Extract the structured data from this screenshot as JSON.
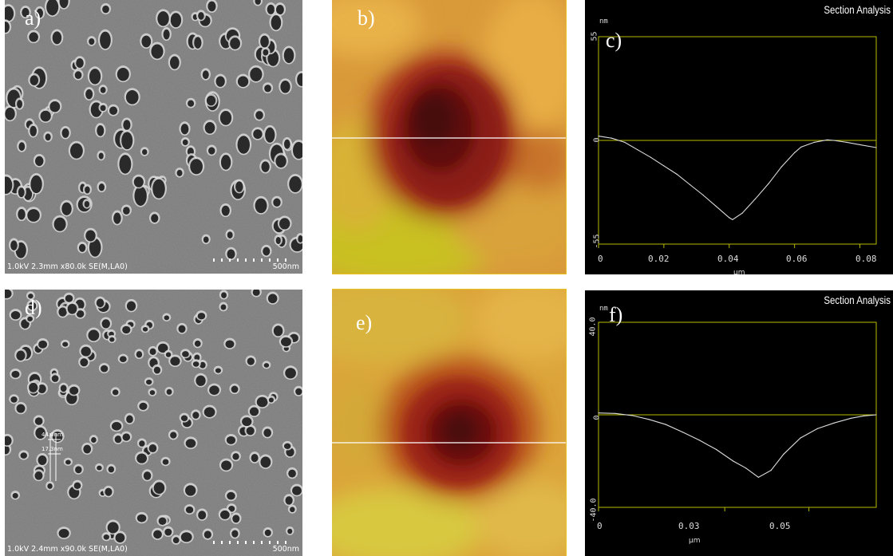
{
  "panels": {
    "a": {
      "label": "a)",
      "footer": "1.0kV 2.3mm x80.0k SE(M,LA0)",
      "scale": "500nm"
    },
    "b": {
      "label": "b)"
    },
    "c": {
      "label": "c)",
      "title": "Section Analysis",
      "y_unit": "nm",
      "y_ticks": [
        "55",
        "0",
        "-55"
      ],
      "x_ticks": [
        "0",
        "0.02",
        "0.04",
        "0.06",
        "0.08"
      ],
      "x_unit": "μm"
    },
    "d": {
      "label": "d)",
      "footer": "1.0kV 2.4mm x90.0k SE(M,LA0)",
      "scale": "500nm",
      "measure1": "44.0nm",
      "measure2": "17.3nm"
    },
    "e": {
      "label": "e)"
    },
    "f": {
      "label": "f)",
      "title": "Section Analysis",
      "y_unit": "nm",
      "y_ticks": [
        "40.0",
        "0",
        "-40.0"
      ],
      "x_ticks": [
        "0",
        "0.03",
        "0.05"
      ],
      "x_unit": "μm"
    }
  },
  "chart_data": [
    {
      "type": "line",
      "title": "Section Analysis",
      "ylabel": "nm",
      "xlabel": "μm",
      "xlim": [
        0,
        0.085
      ],
      "ylim": [
        -55,
        55
      ],
      "x": [
        0,
        0.004,
        0.008,
        0.012,
        0.016,
        0.02,
        0.024,
        0.028,
        0.032,
        0.036,
        0.04,
        0.041,
        0.044,
        0.048,
        0.052,
        0.056,
        0.06,
        0.062,
        0.066,
        0.07,
        0.072,
        0.076,
        0.08,
        0.085
      ],
      "y": [
        2.3,
        1.2,
        -1,
        -5,
        -9,
        -13.5,
        -18,
        -23.5,
        -29,
        -35,
        -41,
        -42,
        -38.6,
        -31,
        -23,
        -14,
        -6.5,
        -3.5,
        -1,
        0.3,
        0,
        -1,
        -2.3,
        -3.8
      ],
      "grid": false,
      "legend": "none"
    },
    {
      "type": "line",
      "title": "Section Analysis",
      "ylabel": "nm",
      "xlabel": "μm",
      "xlim": [
        0,
        0.066
      ],
      "ylim": [
        -40,
        40
      ],
      "x": [
        0,
        0.004,
        0.008,
        0.012,
        0.016,
        0.02,
        0.024,
        0.028,
        0.032,
        0.035,
        0.038,
        0.041,
        0.044,
        0.048,
        0.052,
        0.056,
        0.06,
        0.063,
        0.066
      ],
      "y": [
        0.8,
        0.6,
        -0.3,
        -2,
        -4.2,
        -7.5,
        -11,
        -15,
        -20,
        -23,
        -27,
        -24,
        -17,
        -10,
        -6,
        -3.5,
        -1.5,
        -0.5,
        0
      ],
      "grid": false,
      "legend": "none"
    }
  ],
  "colors": {
    "axis": "#b8b800",
    "trace": "#dcdcdc",
    "plot_bg": "#000000",
    "afm_line": "#ffffff"
  }
}
